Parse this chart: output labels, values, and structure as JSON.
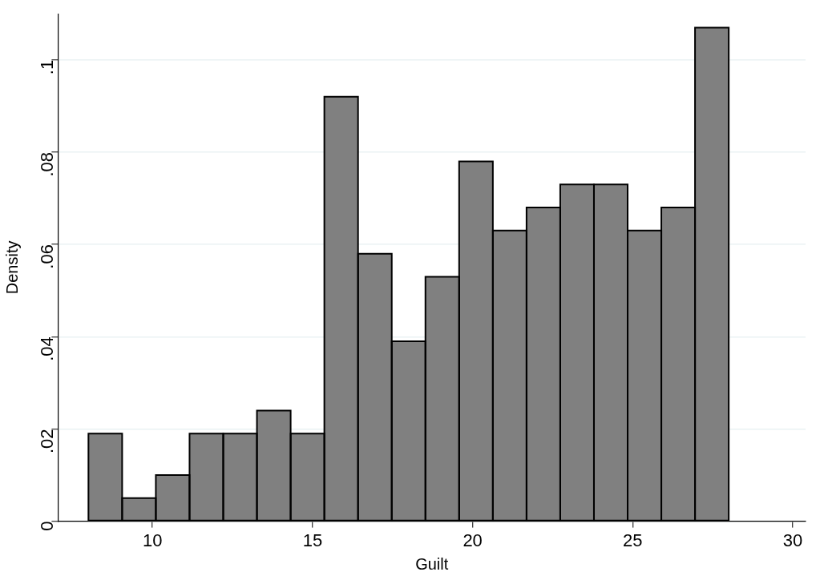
{
  "chart_data": {
    "type": "histogram",
    "xlabel": "Guilt",
    "ylabel": "Density",
    "bins": [
      8,
      9.0526,
      10.1053,
      11.1579,
      12.2105,
      13.2632,
      14.3158,
      15.3684,
      16.4211,
      17.4737,
      18.5263,
      19.5789,
      20.6316,
      21.6842,
      22.7368,
      23.7895,
      24.8421,
      25.8947,
      26.9474,
      28
    ],
    "values": [
      0.019,
      0.005,
      0.01,
      0.019,
      0.019,
      0.024,
      0.019,
      0.092,
      0.058,
      0.039,
      0.053,
      0.078,
      0.063,
      0.068,
      0.073,
      0.073,
      0.063,
      0.068,
      0.107
    ],
    "color": "#808080",
    "xlim": [
      7.05,
      30.4
    ],
    "xticks": [
      10,
      15,
      20,
      25,
      30
    ],
    "ylim": [
      0,
      0.11
    ],
    "yticks": [
      {
        "value": 0,
        "label": "0"
      },
      {
        "value": 0.02,
        "label": ".02"
      },
      {
        "value": 0.04,
        "label": ".04"
      },
      {
        "value": 0.06,
        "label": ".06"
      },
      {
        "value": 0.08,
        "label": ".08"
      },
      {
        "value": 0.1,
        "label": ".1"
      }
    ],
    "grid": "y",
    "legend": false
  }
}
